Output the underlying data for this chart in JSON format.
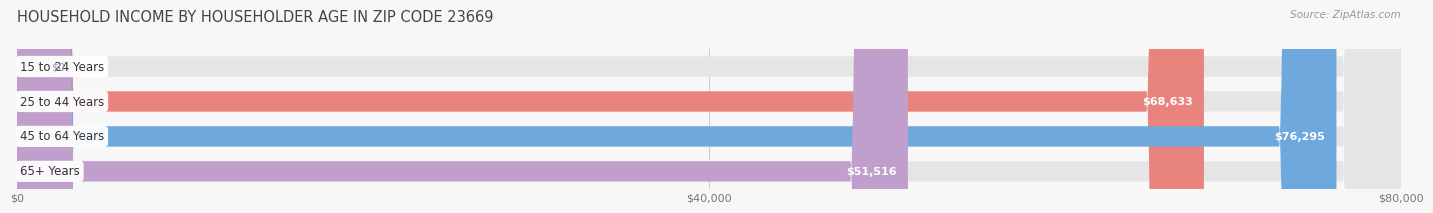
{
  "title": "HOUSEHOLD INCOME BY HOUSEHOLDER AGE IN ZIP CODE 23669",
  "source": "Source: ZipAtlas.com",
  "categories": [
    "15 to 24 Years",
    "25 to 44 Years",
    "45 to 64 Years",
    "65+ Years"
  ],
  "values": [
    0,
    68633,
    76295,
    51516
  ],
  "bar_colors": [
    "#f5c99a",
    "#e8837d",
    "#6fa8dc",
    "#c09fcc"
  ],
  "value_labels": [
    "$0",
    "$68,633",
    "$76,295",
    "$51,516"
  ],
  "value_label_colors": [
    "#999999",
    "#ffffff",
    "#ffffff",
    "#ffffff"
  ],
  "x_ticks": [
    0,
    40000,
    80000
  ],
  "x_tick_labels": [
    "$0",
    "$40,000",
    "$80,000"
  ],
  "xlim": [
    0,
    80000
  ],
  "background_color": "#f7f7f7",
  "bar_bg_color": "#e5e5e5",
  "title_fontsize": 10.5,
  "source_fontsize": 7.5,
  "bar_height": 0.58,
  "label_fontsize": 8.5,
  "value_fontsize": 8
}
